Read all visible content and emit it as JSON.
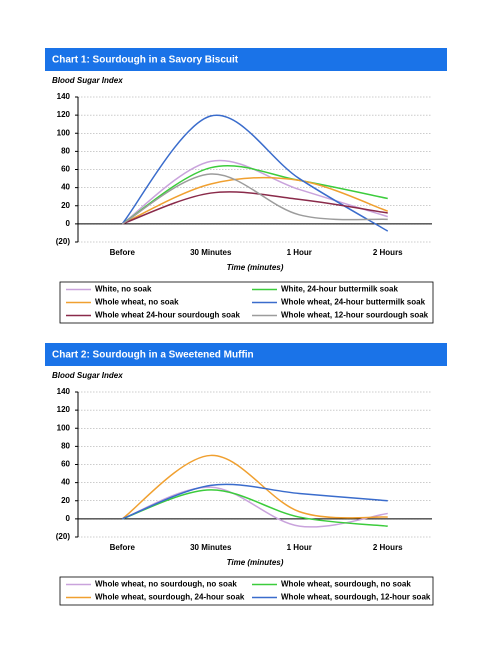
{
  "chart_data": [
    {
      "type": "line",
      "smooth": true,
      "title": "Chart 1:  Sourdough in a Savory Biscuit",
      "y_label": "Blood Sugar Index",
      "x_label": "Time (minutes)",
      "categories": [
        "Before",
        "30 Minutes",
        "1 Hour",
        "2 Hours"
      ],
      "ylim": [
        -20,
        140
      ],
      "yticks": [
        {
          "value": -20,
          "label": "(20)"
        },
        0,
        20,
        40,
        60,
        80,
        100,
        120,
        140
      ],
      "grid": true,
      "series": [
        {
          "name": "White, no soak",
          "color": "#c9a3dc",
          "values": [
            0,
            69,
            38,
            8
          ]
        },
        {
          "name": "White, 24-hour buttermilk soak",
          "color": "#3ccc3c",
          "values": [
            0,
            62,
            48,
            28
          ]
        },
        {
          "name": "Whole wheat, no soak",
          "color": "#f0a030",
          "values": [
            0,
            44,
            48,
            14
          ]
        },
        {
          "name": "Whole wheat, 24-hour buttermilk soak",
          "color": "#3a6ccc",
          "values": [
            0,
            119,
            50,
            -8
          ]
        },
        {
          "name": "Whole wheat 24-hour sourdough soak",
          "color": "#8a2a4a",
          "values": [
            0,
            34,
            27,
            12
          ]
        },
        {
          "name": "Whole wheat, 12-hour sourdough soak",
          "color": "#9c9c9c",
          "values": [
            0,
            55,
            10,
            5
          ]
        }
      ]
    },
    {
      "type": "line",
      "smooth": true,
      "title": "Chart 2:  Sourdough in a Sweetened Muffin",
      "y_label": "Blood Sugar Index",
      "x_label": "Time (minutes)",
      "categories": [
        "Before",
        "30 Minutes",
        "1 Hour",
        "2 Hours"
      ],
      "ylim": [
        -20,
        140
      ],
      "yticks": [
        {
          "value": -20,
          "label": "(20)"
        },
        0,
        20,
        40,
        60,
        80,
        100,
        120,
        140
      ],
      "grid": true,
      "series": [
        {
          "name": "Whole wheat, no sourdough, no soak",
          "color": "#c9a3dc",
          "values": [
            0,
            35,
            -8,
            6
          ]
        },
        {
          "name": "Whole wheat, sourdough, no soak",
          "color": "#3ccc3c",
          "values": [
            0,
            32,
            2,
            -8
          ]
        },
        {
          "name": "Whole wheat, sourdough, 24-hour soak",
          "color": "#f0a030",
          "values": [
            0,
            70,
            8,
            2
          ]
        },
        {
          "name": "Whole wheat, sourdough, 12-hour soak",
          "color": "#3a6ccc",
          "values": [
            0,
            37,
            28,
            20
          ]
        }
      ]
    }
  ]
}
